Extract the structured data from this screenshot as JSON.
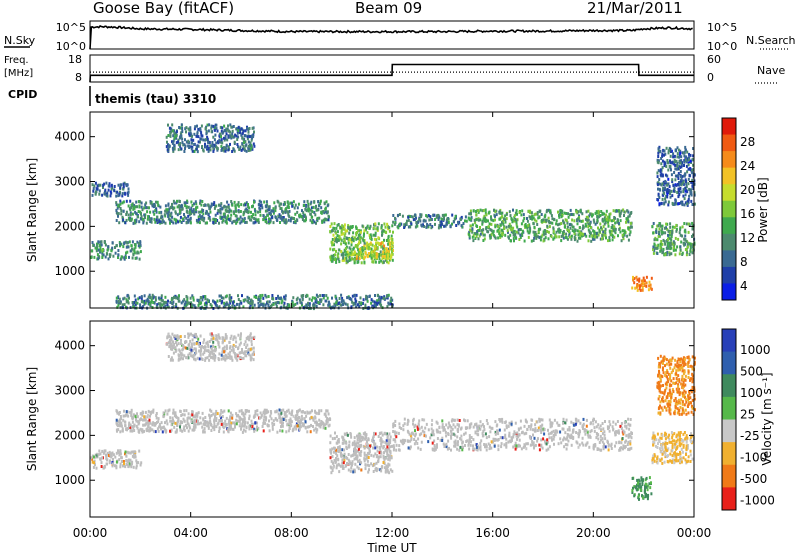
{
  "header": {
    "station": "Goose Bay (fitACF)",
    "beam": "Beam 09",
    "date": "21/Mar/2011"
  },
  "panel_labels": {
    "nsky": "N.Sky",
    "freq_line1": "Freq.",
    "freq_line2": "[MHz]",
    "cpid": "CPID",
    "nsearch": "N.Search",
    "nave": "Nave",
    "cpid_text": "themis (tau) 3310"
  },
  "noise_panel": {
    "left_ticks": [
      "10^5",
      "10^0"
    ],
    "right_ticks": [
      "10^5",
      "10^0"
    ]
  },
  "freq_panel": {
    "left_ticks": [
      "18",
      "8"
    ],
    "right_ticks": [
      "60",
      "0"
    ]
  },
  "x_axis": {
    "label": "Time UT",
    "ticks": [
      "00:00",
      "04:00",
      "08:00",
      "12:00",
      "16:00",
      "20:00",
      "00:00"
    ]
  },
  "power_panel": {
    "ylabel": "Slant Range [km]",
    "yticks": [
      "4000",
      "3000",
      "2000",
      "1000"
    ],
    "colorbar_label": "Power [dB]",
    "colorbar_ticks": [
      "28",
      "24",
      "20",
      "16",
      "12",
      "8",
      "4"
    ],
    "colors": [
      "#0a1ee6",
      "#1f3fa8",
      "#3a6a92",
      "#4c8a6e",
      "#3fa94e",
      "#7ec93a",
      "#c6dc2e",
      "#f2c226",
      "#f58b1b",
      "#f05a12",
      "#e01a0a"
    ]
  },
  "velocity_panel": {
    "ylabel": "Slant Range [km]",
    "yticks": [
      "4000",
      "3000",
      "2000",
      "1000"
    ],
    "colorbar_label": "Velocity [m s⁻¹]",
    "colorbar_ticks": [
      "1000",
      "500",
      "100",
      "25",
      "-25",
      "-100",
      "-500",
      "-1000"
    ],
    "colors": [
      "#2840b8",
      "#2f5fae",
      "#3f8a5e",
      "#56b84a",
      "#c8c8c8",
      "#f0b030",
      "#f07a18",
      "#e8201a"
    ],
    "ground_scatter": "#bdbdbd"
  },
  "chart_data": [
    {
      "type": "line",
      "title": "Goose Bay (fitACF) Beam 09 21/Mar/2011",
      "series": [
        {
          "name": "N.Sky",
          "x_hours": [
            0,
            0.01,
            0.5,
            1,
            2,
            4,
            6,
            8,
            10,
            12,
            14,
            16,
            18,
            20,
            21.5,
            22,
            23,
            24
          ],
          "values_log10": [
            0,
            3.9,
            4.0,
            3.9,
            3.6,
            3.5,
            3.3,
            3.1,
            3.1,
            3.1,
            3.1,
            3.2,
            3.2,
            3.3,
            3.3,
            3.6,
            3.8,
            3.6
          ]
        },
        {
          "name": "N.Search",
          "x_hours": [
            0,
            24
          ],
          "values_log10": [
            0.6,
            0.6
          ]
        }
      ],
      "xlabel": "Time UT"
    },
    {
      "type": "line",
      "series": [
        {
          "name": "Freq",
          "x_hours": [
            0,
            0.01,
            12,
            12.01,
            21.8,
            21.81,
            24
          ],
          "values_mhz": [
            8,
            10.5,
            10.5,
            14.5,
            14.5,
            10.5,
            10.5
          ]
        },
        {
          "name": "Nave",
          "x_hours": [
            0,
            24
          ],
          "values": [
            22,
            22
          ]
        }
      ],
      "ylim_left": [
        8,
        18
      ],
      "ylim_right": [
        0,
        60
      ]
    },
    {
      "type": "heatmap",
      "quantity": "Power",
      "ylabel": "Slant Range [km]",
      "colorbar_label": "Power [dB]",
      "xlabel": "Time UT",
      "xlim_hours": [
        0,
        24
      ],
      "ylim_km": [
        180,
        4550
      ],
      "colorbar_range": [
        0,
        32
      ],
      "regions": [
        {
          "x_hours": [
            0.0,
            2.0
          ],
          "range_km": [
            1300,
            1700
          ],
          "power_db": 10
        },
        {
          "x_hours": [
            1.0,
            9.5
          ],
          "range_km": [
            2100,
            2600
          ],
          "power_db": 9
        },
        {
          "x_hours": [
            0.0,
            1.5
          ],
          "range_km": [
            2700,
            3000
          ],
          "power_db": 6
        },
        {
          "x_hours": [
            3.0,
            6.5
          ],
          "range_km": [
            3700,
            4300
          ],
          "power_db": 7
        },
        {
          "x_hours": [
            9.5,
            12.0
          ],
          "range_km": [
            1200,
            2100
          ],
          "power_db": 14
        },
        {
          "x_hours": [
            10.5,
            12.0
          ],
          "range_km": [
            1300,
            1700
          ],
          "power_db": 20
        },
        {
          "x_hours": [
            12.0,
            15.0
          ],
          "range_km": [
            2000,
            2300
          ],
          "power_db": 8
        },
        {
          "x_hours": [
            15.0,
            21.5
          ],
          "range_km": [
            1700,
            2400
          ],
          "power_db": 12
        },
        {
          "x_hours": [
            21.5,
            22.3
          ],
          "range_km": [
            600,
            900
          ],
          "power_db": 26
        },
        {
          "x_hours": [
            22.3,
            24.0
          ],
          "range_km": [
            1400,
            2100
          ],
          "power_db": 12
        },
        {
          "x_hours": [
            22.5,
            24.0
          ],
          "range_km": [
            2500,
            3800
          ],
          "power_db": 6
        },
        {
          "x_hours": [
            1.0,
            12.0
          ],
          "range_km": [
            200,
            500
          ],
          "power_db": 8
        }
      ]
    },
    {
      "type": "heatmap",
      "quantity": "Velocity",
      "ylabel": "Slant Range [km]",
      "colorbar_label": "Velocity [m s⁻¹]",
      "xlabel": "Time UT",
      "xlim_hours": [
        0,
        24
      ],
      "ylim_km": [
        180,
        4550
      ],
      "colorbar_range": [
        -1000,
        1000
      ],
      "regions": [
        {
          "x_hours": [
            0.0,
            2.0
          ],
          "range_km": [
            1300,
            1700
          ],
          "velocity": 0,
          "ground_scatter": true
        },
        {
          "x_hours": [
            1.0,
            9.5
          ],
          "range_km": [
            2100,
            2600
          ],
          "velocity": 0,
          "ground_scatter": true
        },
        {
          "x_hours": [
            3.0,
            6.5
          ],
          "range_km": [
            3700,
            4300
          ],
          "velocity": 0,
          "ground_scatter": true
        },
        {
          "x_hours": [
            9.5,
            12.0
          ],
          "range_km": [
            1200,
            2100
          ],
          "velocity": 0,
          "ground_scatter": true
        },
        {
          "x_hours": [
            12.0,
            21.5
          ],
          "range_km": [
            1700,
            2400
          ],
          "velocity": 0,
          "ground_scatter": true
        },
        {
          "x_hours": [
            21.5,
            22.3
          ],
          "range_km": [
            600,
            1100
          ],
          "velocity": 250
        },
        {
          "x_hours": [
            22.3,
            24.0
          ],
          "range_km": [
            1400,
            2100
          ],
          "velocity": -100
        },
        {
          "x_hours": [
            22.5,
            24.0
          ],
          "range_km": [
            2500,
            3800
          ],
          "velocity": -150
        }
      ]
    }
  ]
}
